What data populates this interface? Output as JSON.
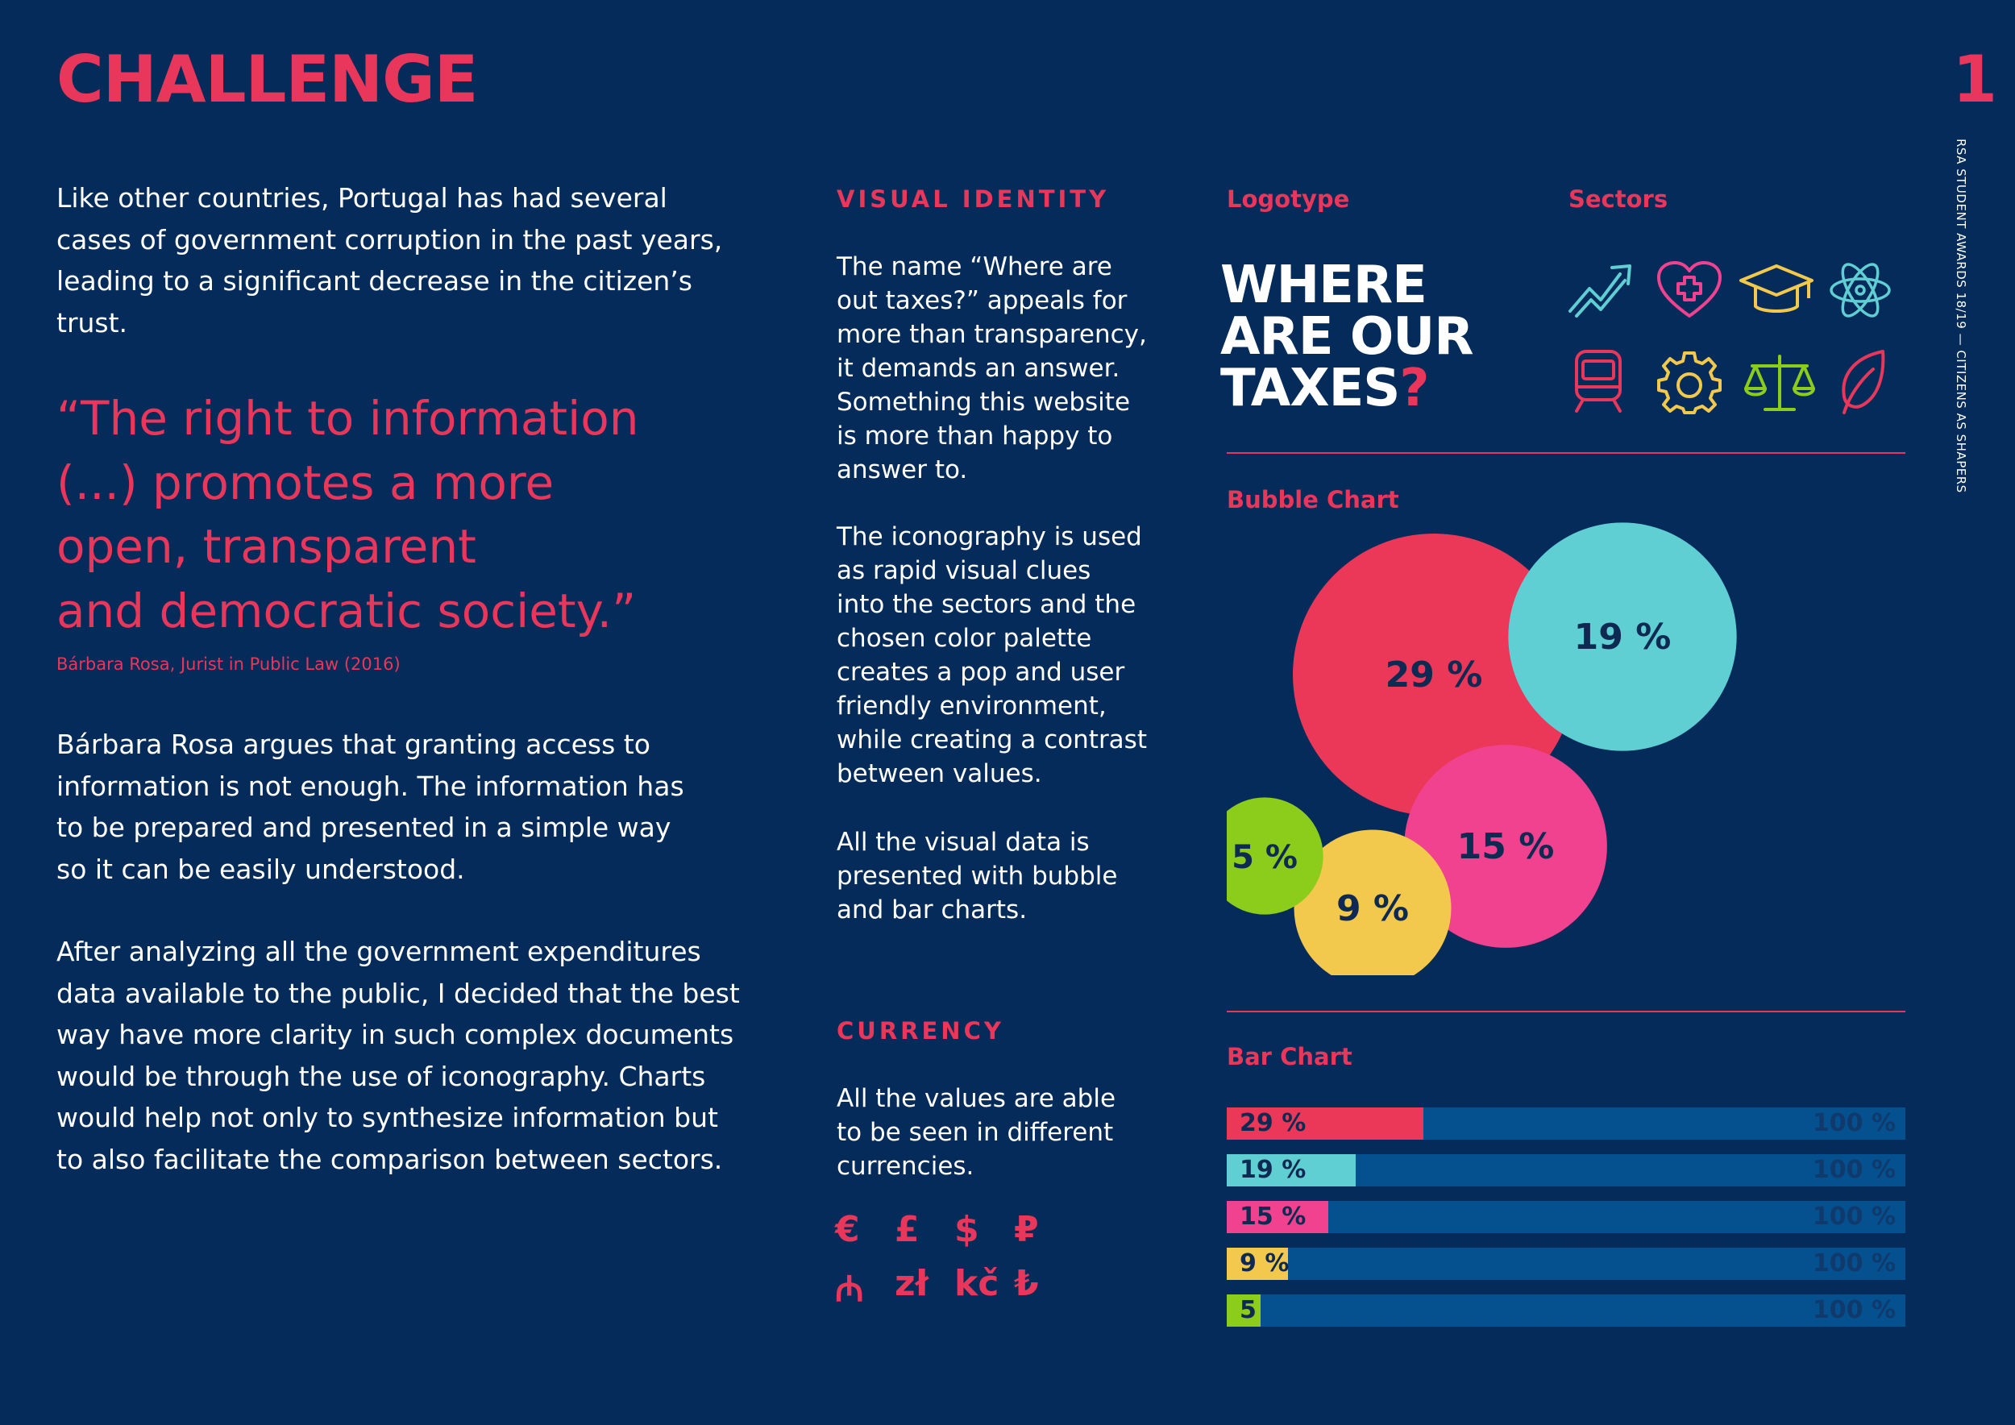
{
  "page": {
    "title": "CHALLENGE",
    "page_number": "1",
    "side_text": "RSA STUDENT AWARDS 18/19 — CITIZENS AS SHAPERS"
  },
  "left": {
    "intro": "Like other countries, Portugal has had several\ncases of government corruption in the past years,\nleading to a significant decrease in the citizen’s\ntrust.",
    "quote": "“The right to information\n(...) promotes a more\nopen, transparent\nand democratic society.”",
    "quote_source": "Bárbara Rosa, Jurist in Public Law (2016)",
    "para2": "Bárbara Rosa argues that granting access to\ninformation is not enough. The information has\nto be prepared and presented in a simple way\nso it can be easily understood.",
    "para3": "After analyzing all the government expenditures\ndata available to the public, I decided that the best\nway have more clarity in such complex documents\nwould be through the use of iconography. Charts\nwould help not only to synthesize information but\nto also facilitate the comparison between sectors."
  },
  "middle": {
    "visual_identity_heading": "VISUAL IDENTITY",
    "vi_para1": "The name “Where are\nout taxes?” appeals for\nmore than transparency,\nit demands an answer.\nSomething this website\nis more than happy to\nanswer to.",
    "vi_para2": "The iconography is used\nas rapid visual clues\ninto the sectors and the\nchosen color palette\ncreates a pop and user\nfriendly environment,\nwhile creating a contrast\nbetween values.",
    "vi_para3": "All the visual data is\npresented with bubble\nand bar charts.",
    "currency_heading": "CURRENCY",
    "currency_para": "All the values are able\nto be seen in different\ncurrencies.",
    "currencies": [
      "€",
      "£",
      "$",
      "₽",
      "₼",
      "zł",
      "kč",
      "₺"
    ]
  },
  "right": {
    "logotype_label": "Logotype",
    "logo_text": "WHERE\nARE OUR\nTAXES",
    "logo_question": "?",
    "sectors_label": "Sectors",
    "sector_icons": [
      {
        "name": "economy-chart-icon",
        "color": "#5fcfd3"
      },
      {
        "name": "health-heart-icon",
        "color": "#f0428f"
      },
      {
        "name": "education-cap-icon",
        "color": "#f2c94c"
      },
      {
        "name": "science-atom-icon",
        "color": "#5fcfd3"
      },
      {
        "name": "transport-train-icon",
        "color": "#e8375a"
      },
      {
        "name": "industry-gear-icon",
        "color": "#f2c94c"
      },
      {
        "name": "justice-scales-icon",
        "color": "#8ccc1a"
      },
      {
        "name": "environment-leaf-icon",
        "color": "#e8375a"
      }
    ],
    "bubble_label": "Bubble Chart",
    "bar_label": "Bar Chart"
  },
  "chart_data": [
    {
      "type": "bubble",
      "values": [
        29,
        19,
        15,
        9,
        5
      ],
      "labels": [
        "29 %",
        "19 %",
        "15 %",
        "9 %",
        "5 %"
      ],
      "colors": [
        "#eb3758",
        "#5fcfd3",
        "#f0428f",
        "#f2c94c",
        "#8ccc1a"
      ]
    },
    {
      "type": "bar",
      "values": [
        29,
        19,
        15,
        9,
        5
      ],
      "labels": [
        "29 %",
        "19 %",
        "15 %",
        "9 %",
        "5"
      ],
      "max_label": "100 %",
      "ylim": [
        0,
        100
      ],
      "colors": [
        "#eb3758",
        "#5fcfd3",
        "#f0428f",
        "#f2c94c",
        "#8ccc1a"
      ]
    }
  ]
}
